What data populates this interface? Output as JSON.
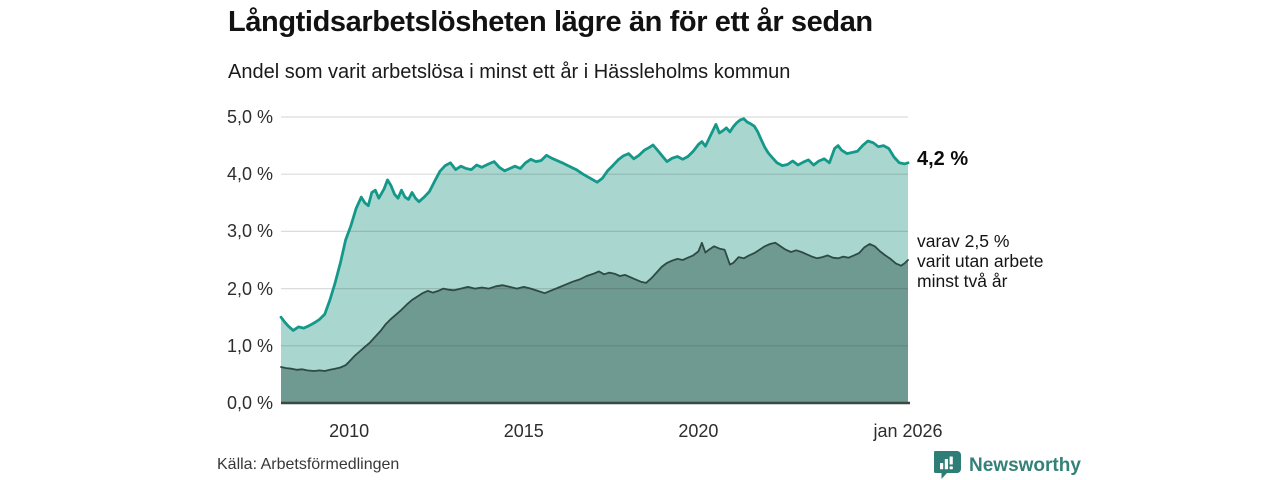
{
  "header": {},
  "chart_data": {
    "type": "area",
    "title": "Långtidsarbetslösheten lägre än för ett år sedan",
    "subtitle": "Andel som varit arbetslösa i minst ett år i Hässleholms kommun",
    "source": "Källa: Arbetsförmedlingen",
    "xlabel": "",
    "ylabel": "",
    "xlim": [
      2008.05,
      2026.0
    ],
    "ylim": [
      0,
      5
    ],
    "grid": true,
    "legend_position": "end-labels-right",
    "y_ticks": [
      {
        "label": "5,0 %",
        "v": 5
      },
      {
        "label": "4,0 %",
        "v": 4
      },
      {
        "label": "3,0 %",
        "v": 3
      },
      {
        "label": "2,0 %",
        "v": 2
      },
      {
        "label": "1,0 %",
        "v": 1
      },
      {
        "label": "0,0 %",
        "v": 0
      }
    ],
    "x_ticks": [
      {
        "label": "2010",
        "x": 2010
      },
      {
        "label": "2015",
        "x": 2015
      },
      {
        "label": "2020",
        "x": 2020
      },
      {
        "label": "jan 2026",
        "x": 2026.0
      }
    ],
    "end_labels": {
      "total": "4,2 %",
      "subset_lines": [
        "varav 2,5 %",
        "varit utan arbete",
        "minst två år"
      ]
    },
    "colors": {
      "total_fill": "#a9d6cf",
      "total_line": "#149889",
      "subset_fill": "#6f9a92",
      "subset_line": "#2e4a43",
      "gridline": "rgba(40,40,40,0.16)",
      "baseline": "#3b4742",
      "brand_teal": "#2e7e77"
    },
    "series": [
      {
        "name": "Arbetslösa minst ett år (totalt)",
        "end_value": 4.2,
        "points": [
          [
            2008.05,
            1.5
          ],
          [
            2008.15,
            1.42
          ],
          [
            2008.25,
            1.35
          ],
          [
            2008.4,
            1.27
          ],
          [
            2008.55,
            1.33
          ],
          [
            2008.7,
            1.31
          ],
          [
            2008.85,
            1.35
          ],
          [
            2009.0,
            1.4
          ],
          [
            2009.15,
            1.46
          ],
          [
            2009.3,
            1.55
          ],
          [
            2009.45,
            1.8
          ],
          [
            2009.6,
            2.1
          ],
          [
            2009.75,
            2.45
          ],
          [
            2009.9,
            2.85
          ],
          [
            2010.05,
            3.1
          ],
          [
            2010.2,
            3.4
          ],
          [
            2010.35,
            3.6
          ],
          [
            2010.45,
            3.5
          ],
          [
            2010.55,
            3.45
          ],
          [
            2010.65,
            3.68
          ],
          [
            2010.75,
            3.72
          ],
          [
            2010.85,
            3.58
          ],
          [
            2011.0,
            3.74
          ],
          [
            2011.1,
            3.9
          ],
          [
            2011.2,
            3.8
          ],
          [
            2011.3,
            3.65
          ],
          [
            2011.4,
            3.58
          ],
          [
            2011.5,
            3.72
          ],
          [
            2011.6,
            3.6
          ],
          [
            2011.7,
            3.56
          ],
          [
            2011.8,
            3.68
          ],
          [
            2011.9,
            3.58
          ],
          [
            2012.0,
            3.52
          ],
          [
            2012.15,
            3.6
          ],
          [
            2012.3,
            3.7
          ],
          [
            2012.45,
            3.88
          ],
          [
            2012.6,
            4.05
          ],
          [
            2012.75,
            4.15
          ],
          [
            2012.9,
            4.2
          ],
          [
            2013.05,
            4.08
          ],
          [
            2013.2,
            4.14
          ],
          [
            2013.35,
            4.1
          ],
          [
            2013.5,
            4.08
          ],
          [
            2013.65,
            4.16
          ],
          [
            2013.8,
            4.12
          ],
          [
            2014.0,
            4.18
          ],
          [
            2014.15,
            4.22
          ],
          [
            2014.3,
            4.12
          ],
          [
            2014.45,
            4.06
          ],
          [
            2014.6,
            4.1
          ],
          [
            2014.75,
            4.14
          ],
          [
            2014.9,
            4.1
          ],
          [
            2015.05,
            4.2
          ],
          [
            2015.2,
            4.26
          ],
          [
            2015.35,
            4.22
          ],
          [
            2015.5,
            4.24
          ],
          [
            2015.65,
            4.33
          ],
          [
            2015.8,
            4.28
          ],
          [
            2015.95,
            4.24
          ],
          [
            2016.1,
            4.2
          ],
          [
            2016.3,
            4.14
          ],
          [
            2016.5,
            4.08
          ],
          [
            2016.7,
            4.0
          ],
          [
            2016.9,
            3.93
          ],
          [
            2017.1,
            3.86
          ],
          [
            2017.25,
            3.93
          ],
          [
            2017.4,
            4.06
          ],
          [
            2017.55,
            4.15
          ],
          [
            2017.7,
            4.25
          ],
          [
            2017.85,
            4.32
          ],
          [
            2018.0,
            4.36
          ],
          [
            2018.15,
            4.27
          ],
          [
            2018.3,
            4.33
          ],
          [
            2018.45,
            4.42
          ],
          [
            2018.6,
            4.47
          ],
          [
            2018.7,
            4.51
          ],
          [
            2018.8,
            4.44
          ],
          [
            2018.95,
            4.33
          ],
          [
            2019.1,
            4.22
          ],
          [
            2019.25,
            4.28
          ],
          [
            2019.4,
            4.31
          ],
          [
            2019.55,
            4.26
          ],
          [
            2019.7,
            4.31
          ],
          [
            2019.85,
            4.4
          ],
          [
            2020.0,
            4.52
          ],
          [
            2020.1,
            4.57
          ],
          [
            2020.2,
            4.49
          ],
          [
            2020.35,
            4.68
          ],
          [
            2020.5,
            4.87
          ],
          [
            2020.6,
            4.72
          ],
          [
            2020.7,
            4.76
          ],
          [
            2020.8,
            4.81
          ],
          [
            2020.9,
            4.74
          ],
          [
            2021.0,
            4.83
          ],
          [
            2021.1,
            4.9
          ],
          [
            2021.2,
            4.95
          ],
          [
            2021.3,
            4.97
          ],
          [
            2021.4,
            4.91
          ],
          [
            2021.5,
            4.88
          ],
          [
            2021.6,
            4.84
          ],
          [
            2021.7,
            4.74
          ],
          [
            2021.8,
            4.6
          ],
          [
            2021.9,
            4.47
          ],
          [
            2022.0,
            4.37
          ],
          [
            2022.1,
            4.3
          ],
          [
            2022.25,
            4.2
          ],
          [
            2022.4,
            4.15
          ],
          [
            2022.55,
            4.17
          ],
          [
            2022.7,
            4.23
          ],
          [
            2022.85,
            4.16
          ],
          [
            2023.0,
            4.21
          ],
          [
            2023.15,
            4.25
          ],
          [
            2023.3,
            4.16
          ],
          [
            2023.45,
            4.23
          ],
          [
            2023.6,
            4.27
          ],
          [
            2023.75,
            4.2
          ],
          [
            2023.9,
            4.45
          ],
          [
            2024.0,
            4.5
          ],
          [
            2024.1,
            4.42
          ],
          [
            2024.25,
            4.36
          ],
          [
            2024.4,
            4.38
          ],
          [
            2024.55,
            4.4
          ],
          [
            2024.7,
            4.5
          ],
          [
            2024.85,
            4.58
          ],
          [
            2025.0,
            4.55
          ],
          [
            2025.15,
            4.48
          ],
          [
            2025.3,
            4.5
          ],
          [
            2025.45,
            4.45
          ],
          [
            2025.6,
            4.3
          ],
          [
            2025.75,
            4.2
          ],
          [
            2025.9,
            4.18
          ],
          [
            2026.0,
            4.2
          ]
        ]
      },
      {
        "name": "Varav utan arbete minst två år",
        "end_value": 2.5,
        "points": [
          [
            2008.05,
            0.63
          ],
          [
            2008.2,
            0.61
          ],
          [
            2008.35,
            0.6
          ],
          [
            2008.5,
            0.58
          ],
          [
            2008.65,
            0.59
          ],
          [
            2008.8,
            0.57
          ],
          [
            2009.0,
            0.56
          ],
          [
            2009.15,
            0.57
          ],
          [
            2009.3,
            0.56
          ],
          [
            2009.45,
            0.58
          ],
          [
            2009.6,
            0.6
          ],
          [
            2009.75,
            0.62
          ],
          [
            2009.9,
            0.66
          ],
          [
            2010.0,
            0.72
          ],
          [
            2010.15,
            0.82
          ],
          [
            2010.3,
            0.9
          ],
          [
            2010.45,
            0.98
          ],
          [
            2010.6,
            1.06
          ],
          [
            2010.75,
            1.16
          ],
          [
            2010.9,
            1.26
          ],
          [
            2011.05,
            1.38
          ],
          [
            2011.2,
            1.47
          ],
          [
            2011.35,
            1.55
          ],
          [
            2011.5,
            1.63
          ],
          [
            2011.65,
            1.72
          ],
          [
            2011.8,
            1.8
          ],
          [
            2011.95,
            1.86
          ],
          [
            2012.1,
            1.92
          ],
          [
            2012.25,
            1.96
          ],
          [
            2012.4,
            1.93
          ],
          [
            2012.55,
            1.96
          ],
          [
            2012.7,
            2.0
          ],
          [
            2012.85,
            1.98
          ],
          [
            2013.0,
            1.97
          ],
          [
            2013.2,
            2.0
          ],
          [
            2013.4,
            2.03
          ],
          [
            2013.6,
            2.0
          ],
          [
            2013.8,
            2.02
          ],
          [
            2014.0,
            2.0
          ],
          [
            2014.2,
            2.04
          ],
          [
            2014.4,
            2.06
          ],
          [
            2014.6,
            2.03
          ],
          [
            2014.8,
            2.0
          ],
          [
            2015.0,
            2.03
          ],
          [
            2015.2,
            2.0
          ],
          [
            2015.4,
            1.96
          ],
          [
            2015.6,
            1.92
          ],
          [
            2015.8,
            1.97
          ],
          [
            2016.0,
            2.02
          ],
          [
            2016.2,
            2.07
          ],
          [
            2016.4,
            2.12
          ],
          [
            2016.6,
            2.16
          ],
          [
            2016.8,
            2.22
          ],
          [
            2017.0,
            2.26
          ],
          [
            2017.15,
            2.3
          ],
          [
            2017.3,
            2.25
          ],
          [
            2017.45,
            2.28
          ],
          [
            2017.6,
            2.26
          ],
          [
            2017.75,
            2.22
          ],
          [
            2017.9,
            2.24
          ],
          [
            2018.05,
            2.2
          ],
          [
            2018.2,
            2.16
          ],
          [
            2018.35,
            2.12
          ],
          [
            2018.5,
            2.1
          ],
          [
            2018.65,
            2.18
          ],
          [
            2018.8,
            2.28
          ],
          [
            2018.95,
            2.38
          ],
          [
            2019.1,
            2.45
          ],
          [
            2019.25,
            2.49
          ],
          [
            2019.4,
            2.52
          ],
          [
            2019.55,
            2.5
          ],
          [
            2019.7,
            2.54
          ],
          [
            2019.85,
            2.58
          ],
          [
            2020.0,
            2.65
          ],
          [
            2020.1,
            2.8
          ],
          [
            2020.2,
            2.63
          ],
          [
            2020.3,
            2.68
          ],
          [
            2020.45,
            2.74
          ],
          [
            2020.6,
            2.7
          ],
          [
            2020.75,
            2.68
          ],
          [
            2020.9,
            2.42
          ],
          [
            2021.0,
            2.45
          ],
          [
            2021.15,
            2.55
          ],
          [
            2021.3,
            2.53
          ],
          [
            2021.45,
            2.58
          ],
          [
            2021.6,
            2.62
          ],
          [
            2021.75,
            2.68
          ],
          [
            2021.9,
            2.74
          ],
          [
            2022.05,
            2.78
          ],
          [
            2022.2,
            2.8
          ],
          [
            2022.35,
            2.74
          ],
          [
            2022.5,
            2.68
          ],
          [
            2022.65,
            2.64
          ],
          [
            2022.8,
            2.67
          ],
          [
            2022.95,
            2.64
          ],
          [
            2023.1,
            2.6
          ],
          [
            2023.25,
            2.56
          ],
          [
            2023.4,
            2.53
          ],
          [
            2023.55,
            2.55
          ],
          [
            2023.7,
            2.58
          ],
          [
            2023.85,
            2.54
          ],
          [
            2024.0,
            2.53
          ],
          [
            2024.15,
            2.56
          ],
          [
            2024.3,
            2.54
          ],
          [
            2024.45,
            2.58
          ],
          [
            2024.6,
            2.62
          ],
          [
            2024.75,
            2.72
          ],
          [
            2024.9,
            2.78
          ],
          [
            2025.05,
            2.74
          ],
          [
            2025.2,
            2.65
          ],
          [
            2025.35,
            2.58
          ],
          [
            2025.5,
            2.52
          ],
          [
            2025.65,
            2.44
          ],
          [
            2025.8,
            2.4
          ],
          [
            2025.9,
            2.44
          ],
          [
            2026.0,
            2.5
          ]
        ]
      }
    ]
  },
  "footer": {
    "brand": "Newsworthy"
  }
}
